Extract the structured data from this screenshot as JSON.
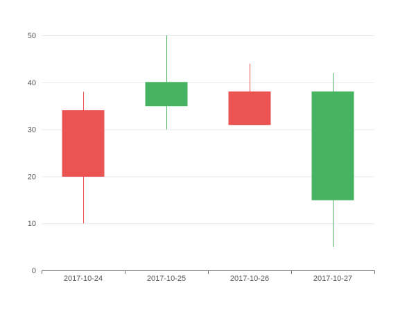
{
  "chart_data": {
    "type": "candlestick",
    "categories": [
      "2017-10-24",
      "2017-10-25",
      "2017-10-26",
      "2017-10-27"
    ],
    "series": [
      {
        "open": [
          34,
          35,
          38,
          15
        ],
        "close": [
          20,
          40,
          31,
          38
        ],
        "low": [
          10,
          30,
          31,
          5
        ],
        "high": [
          38,
          50,
          44,
          42
        ]
      }
    ],
    "ylim": [
      0,
      50
    ],
    "yticks": [
      0,
      10,
      20,
      30,
      40,
      50
    ],
    "grid": true,
    "colors": {
      "down": "#ec5454",
      "up": "#47b262",
      "grid": "#e6e9f2",
      "axis": "#6e7079",
      "tick_text": "#555555"
    }
  }
}
